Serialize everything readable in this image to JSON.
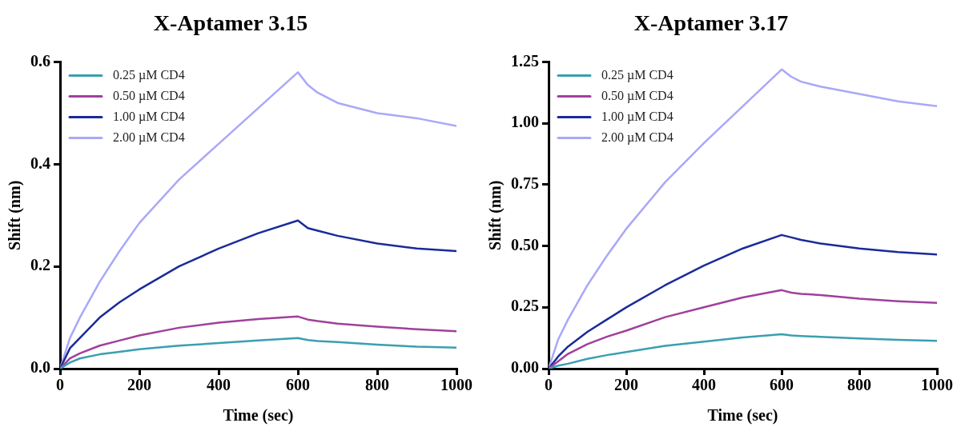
{
  "chart_data": [
    {
      "type": "line",
      "title": "X-Aptamer 3.15",
      "xlabel": "Time (sec)",
      "ylabel": "Shift (nm)",
      "x": [
        0,
        25,
        50,
        100,
        150,
        200,
        300,
        400,
        500,
        600,
        625,
        650,
        700,
        800,
        900,
        1000
      ],
      "series": [
        {
          "name": "0.25 µM CD4",
          "color": "#3a9fb0",
          "values": [
            0,
            0.012,
            0.02,
            0.028,
            0.033,
            0.038,
            0.045,
            0.05,
            0.055,
            0.06,
            0.056,
            0.054,
            0.052,
            0.047,
            0.043,
            0.041
          ]
        },
        {
          "name": "0.50 µM CD4",
          "color": "#a0409c",
          "values": [
            0,
            0.02,
            0.03,
            0.045,
            0.055,
            0.065,
            0.08,
            0.09,
            0.097,
            0.102,
            0.096,
            0.093,
            0.088,
            0.082,
            0.077,
            0.073
          ]
        },
        {
          "name": "1.00 µM CD4",
          "color": "#1a2a99",
          "values": [
            0,
            0.04,
            0.06,
            0.1,
            0.13,
            0.155,
            0.2,
            0.235,
            0.265,
            0.29,
            0.275,
            0.27,
            0.26,
            0.245,
            0.235,
            0.23
          ]
        },
        {
          "name": "2.00 µM CD4",
          "color": "#a9a8f8",
          "values": [
            0,
            0.06,
            0.1,
            0.17,
            0.23,
            0.285,
            0.37,
            0.44,
            0.51,
            0.58,
            0.555,
            0.54,
            0.52,
            0.5,
            0.49,
            0.475
          ]
        }
      ],
      "xlim": [
        0,
        1000
      ],
      "xticks": [
        0,
        200,
        400,
        600,
        800,
        1000
      ],
      "ylim": [
        0,
        0.6
      ],
      "yticks": [
        {
          "value": 0,
          "label": "0.0"
        },
        {
          "value": 0.2,
          "label": "0.2"
        },
        {
          "value": 0.4,
          "label": "0.4"
        },
        {
          "value": 0.6,
          "label": "0.6"
        }
      ],
      "grid": false,
      "legend": "top left",
      "marker": "none",
      "line_style": "solid"
    },
    {
      "type": "line",
      "title": "X-Aptamer 3.17",
      "xlabel": "Time (sec)",
      "ylabel": "Shift (nm)",
      "x": [
        0,
        25,
        50,
        100,
        150,
        200,
        300,
        400,
        500,
        600,
        625,
        650,
        700,
        800,
        900,
        1000
      ],
      "series": [
        {
          "name": "0.25 µM CD4",
          "color": "#3a9fb0",
          "values": [
            0,
            0.012,
            0.02,
            0.04,
            0.055,
            0.068,
            0.093,
            0.11,
            0.127,
            0.14,
            0.135,
            0.133,
            0.13,
            0.123,
            0.117,
            0.113
          ]
        },
        {
          "name": "0.50 µM CD4",
          "color": "#a0409c",
          "values": [
            0,
            0.03,
            0.06,
            0.1,
            0.13,
            0.155,
            0.21,
            0.25,
            0.29,
            0.32,
            0.31,
            0.305,
            0.3,
            0.285,
            0.275,
            0.268
          ]
        },
        {
          "name": "1.00 µM CD4",
          "color": "#1a2a99",
          "values": [
            0,
            0.05,
            0.09,
            0.15,
            0.2,
            0.25,
            0.34,
            0.42,
            0.49,
            0.545,
            0.535,
            0.525,
            0.51,
            0.49,
            0.475,
            0.465
          ]
        },
        {
          "name": "2.00 µM CD4",
          "color": "#a9a8f8",
          "values": [
            0,
            0.12,
            0.2,
            0.34,
            0.46,
            0.57,
            0.76,
            0.92,
            1.07,
            1.22,
            1.19,
            1.17,
            1.15,
            1.12,
            1.09,
            1.07
          ]
        }
      ],
      "xlim": [
        0,
        1000
      ],
      "xticks": [
        0,
        200,
        400,
        600,
        800,
        1000
      ],
      "ylim": [
        0,
        1.25
      ],
      "yticks": [
        {
          "value": 0,
          "label": "0.00"
        },
        {
          "value": 0.25,
          "label": "0.25"
        },
        {
          "value": 0.5,
          "label": "0.50"
        },
        {
          "value": 0.75,
          "label": "0.75"
        },
        {
          "value": 1,
          "label": "1.00"
        },
        {
          "value": 1.25,
          "label": "1.25"
        }
      ],
      "grid": false,
      "legend": "top left",
      "marker": "none",
      "line_style": "solid"
    }
  ]
}
